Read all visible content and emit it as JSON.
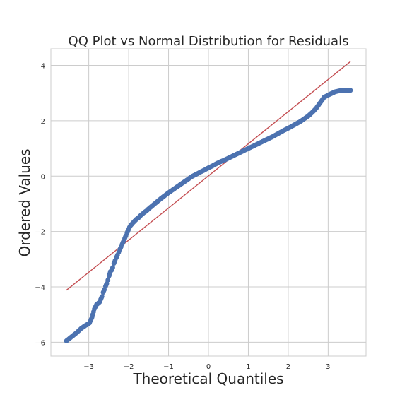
{
  "chart_data": {
    "type": "scatter",
    "title": "QQ Plot vs Normal Distribution for Residuals",
    "xlabel": "Theoretical Quantiles",
    "ylabel": "Ordered Values",
    "xlim": [
      -3.95,
      3.95
    ],
    "ylim": [
      -6.5,
      4.6
    ],
    "xticks": [
      -3,
      -2,
      -1,
      0,
      1,
      2,
      3
    ],
    "yticks": [
      -6,
      -4,
      -2,
      0,
      2,
      4
    ],
    "grid": true,
    "legend": "none",
    "colors": {
      "points": "#4c72b0",
      "line": "#c44e52",
      "grid": "#cccccc",
      "frame": "#cccccc"
    },
    "reference_line": {
      "x": [
        -3.56,
        3.56
      ],
      "y": [
        -4.12,
        4.14
      ]
    },
    "series": [
      {
        "x": [
          -3.56,
          -3.3,
          -3.19,
          -3.09,
          -3.03,
          -2.98,
          -2.92,
          -2.86,
          -2.81,
          -2.77,
          -2.73,
          -2.7,
          -2.67,
          -2.64,
          -2.61,
          -2.58,
          -2.55,
          -2.52,
          -2.49,
          -2.46,
          -2.43,
          -2.4,
          -2.37,
          -2.34,
          -2.31,
          -2.28,
          -2.25,
          -2.22,
          -2.19,
          -2.16,
          -2.13,
          -2.1,
          -2.07,
          -2.04,
          -2.01,
          -1.98,
          -1.95,
          -1.9,
          -1.85,
          -1.8,
          -1.75,
          -1.7,
          -1.65,
          -1.6,
          -1.55,
          -1.5,
          -1.45,
          -1.4,
          -1.3,
          -1.2,
          -1.1,
          -1.0,
          -0.9,
          -0.8,
          -0.7,
          -0.6,
          -0.5,
          -0.4,
          -0.3,
          -0.2,
          -0.1,
          0.0,
          0.1,
          0.2,
          0.3,
          0.4,
          0.5,
          0.6,
          0.7,
          0.8,
          0.9,
          1.0,
          1.1,
          1.2,
          1.3,
          1.4,
          1.5,
          1.6,
          1.7,
          1.8,
          1.9,
          2.0,
          2.1,
          2.2,
          2.3,
          2.4,
          2.5,
          2.6,
          2.7,
          2.8,
          2.9,
          3.03,
          3.18,
          3.34,
          3.56
        ],
        "y": [
          -5.95,
          -5.65,
          -5.5,
          -5.4,
          -5.35,
          -5.3,
          -5.1,
          -4.8,
          -4.65,
          -4.6,
          -4.55,
          -4.45,
          -4.35,
          -4.2,
          -4.1,
          -3.98,
          -3.88,
          -3.75,
          -3.6,
          -3.45,
          -3.4,
          -3.3,
          -3.15,
          -3.05,
          -2.95,
          -2.85,
          -2.75,
          -2.65,
          -2.55,
          -2.45,
          -2.35,
          -2.25,
          -2.15,
          -2.05,
          -1.95,
          -1.85,
          -1.78,
          -1.7,
          -1.62,
          -1.55,
          -1.5,
          -1.42,
          -1.36,
          -1.3,
          -1.25,
          -1.18,
          -1.12,
          -1.06,
          -0.94,
          -0.82,
          -0.71,
          -0.6,
          -0.5,
          -0.4,
          -0.3,
          -0.2,
          -0.1,
          0.0,
          0.07,
          0.15,
          0.22,
          0.3,
          0.37,
          0.45,
          0.52,
          0.58,
          0.65,
          0.72,
          0.79,
          0.86,
          0.93,
          1.0,
          1.07,
          1.14,
          1.21,
          1.28,
          1.35,
          1.42,
          1.5,
          1.58,
          1.66,
          1.73,
          1.81,
          1.89,
          1.97,
          2.07,
          2.17,
          2.3,
          2.45,
          2.65,
          2.85,
          2.95,
          3.05,
          3.1,
          3.1
        ]
      }
    ]
  }
}
